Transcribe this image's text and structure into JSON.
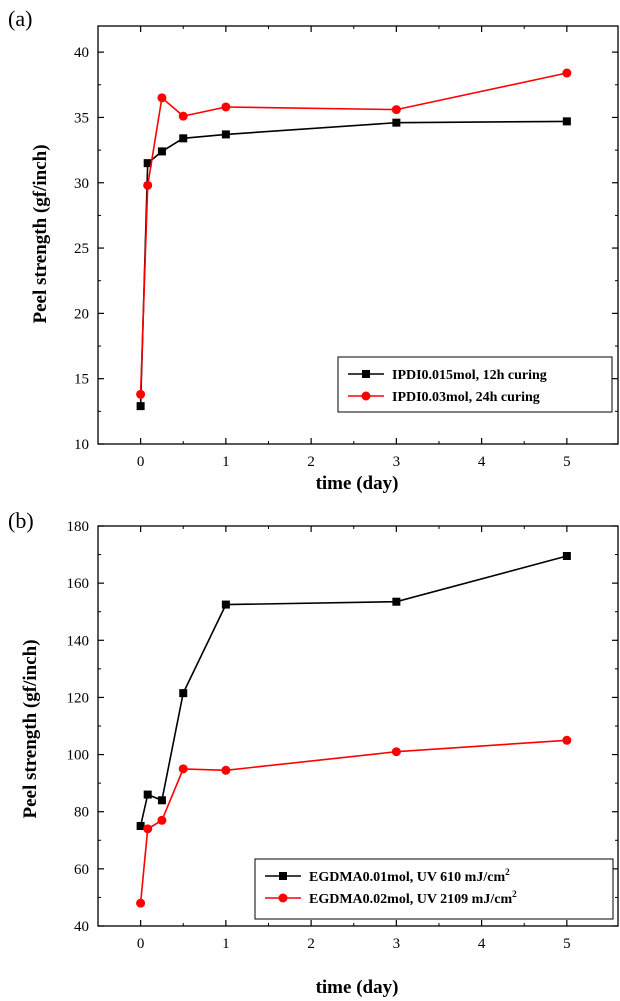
{
  "chart_data": [
    {
      "panel_label": "(a)",
      "type": "line",
      "xlabel": "time (day)",
      "ylabel": "Peel strength (gf/inch)",
      "xlim": [
        -0.5,
        5.6
      ],
      "ylim": [
        10,
        42
      ],
      "xticks": [
        0,
        1,
        2,
        3,
        4,
        5
      ],
      "yticks": [
        10,
        15,
        20,
        25,
        30,
        35,
        40
      ],
      "legend_position": "bottom-right",
      "series": [
        {
          "name": "IPDI0.015mol, 12h curing",
          "name_sup": "",
          "color": "#000000",
          "marker": "square",
          "x": [
            0,
            0.083,
            0.25,
            0.5,
            1,
            3,
            5
          ],
          "y": [
            12.9,
            31.5,
            32.4,
            33.4,
            33.7,
            34.6,
            34.7
          ]
        },
        {
          "name": "IPDI0.03mol, 24h curing",
          "name_sup": "",
          "color": "#ff0000",
          "marker": "circle",
          "x": [
            0,
            0.083,
            0.25,
            0.5,
            1,
            3,
            5
          ],
          "y": [
            13.8,
            29.8,
            36.5,
            35.1,
            35.8,
            35.6,
            38.4
          ]
        }
      ]
    },
    {
      "panel_label": "(b)",
      "type": "line",
      "xlabel": "time (day)",
      "ylabel": "Peel strength (gf/inch)",
      "xlim": [
        -0.5,
        5.6
      ],
      "ylim": [
        40,
        180
      ],
      "xticks": [
        0,
        1,
        2,
        3,
        4,
        5
      ],
      "yticks": [
        40,
        60,
        80,
        100,
        120,
        140,
        160,
        180
      ],
      "legend_position": "bottom-right",
      "series": [
        {
          "name": "EGDMA0.01mol, UV 610 mJ/cm",
          "name_sup": "2",
          "color": "#000000",
          "marker": "square",
          "x": [
            0,
            0.083,
            0.25,
            0.5,
            1,
            3,
            5
          ],
          "y": [
            75,
            86,
            84,
            121.5,
            152.5,
            153.5,
            169.5
          ]
        },
        {
          "name": "EGDMA0.02mol, UV 2109 mJ/cm",
          "name_sup": "2",
          "color": "#ff0000",
          "marker": "circle",
          "x": [
            0,
            0.083,
            0.25,
            0.5,
            1,
            3,
            5
          ],
          "y": [
            48,
            74,
            77,
            95,
            94.5,
            101,
            105
          ]
        }
      ]
    }
  ]
}
